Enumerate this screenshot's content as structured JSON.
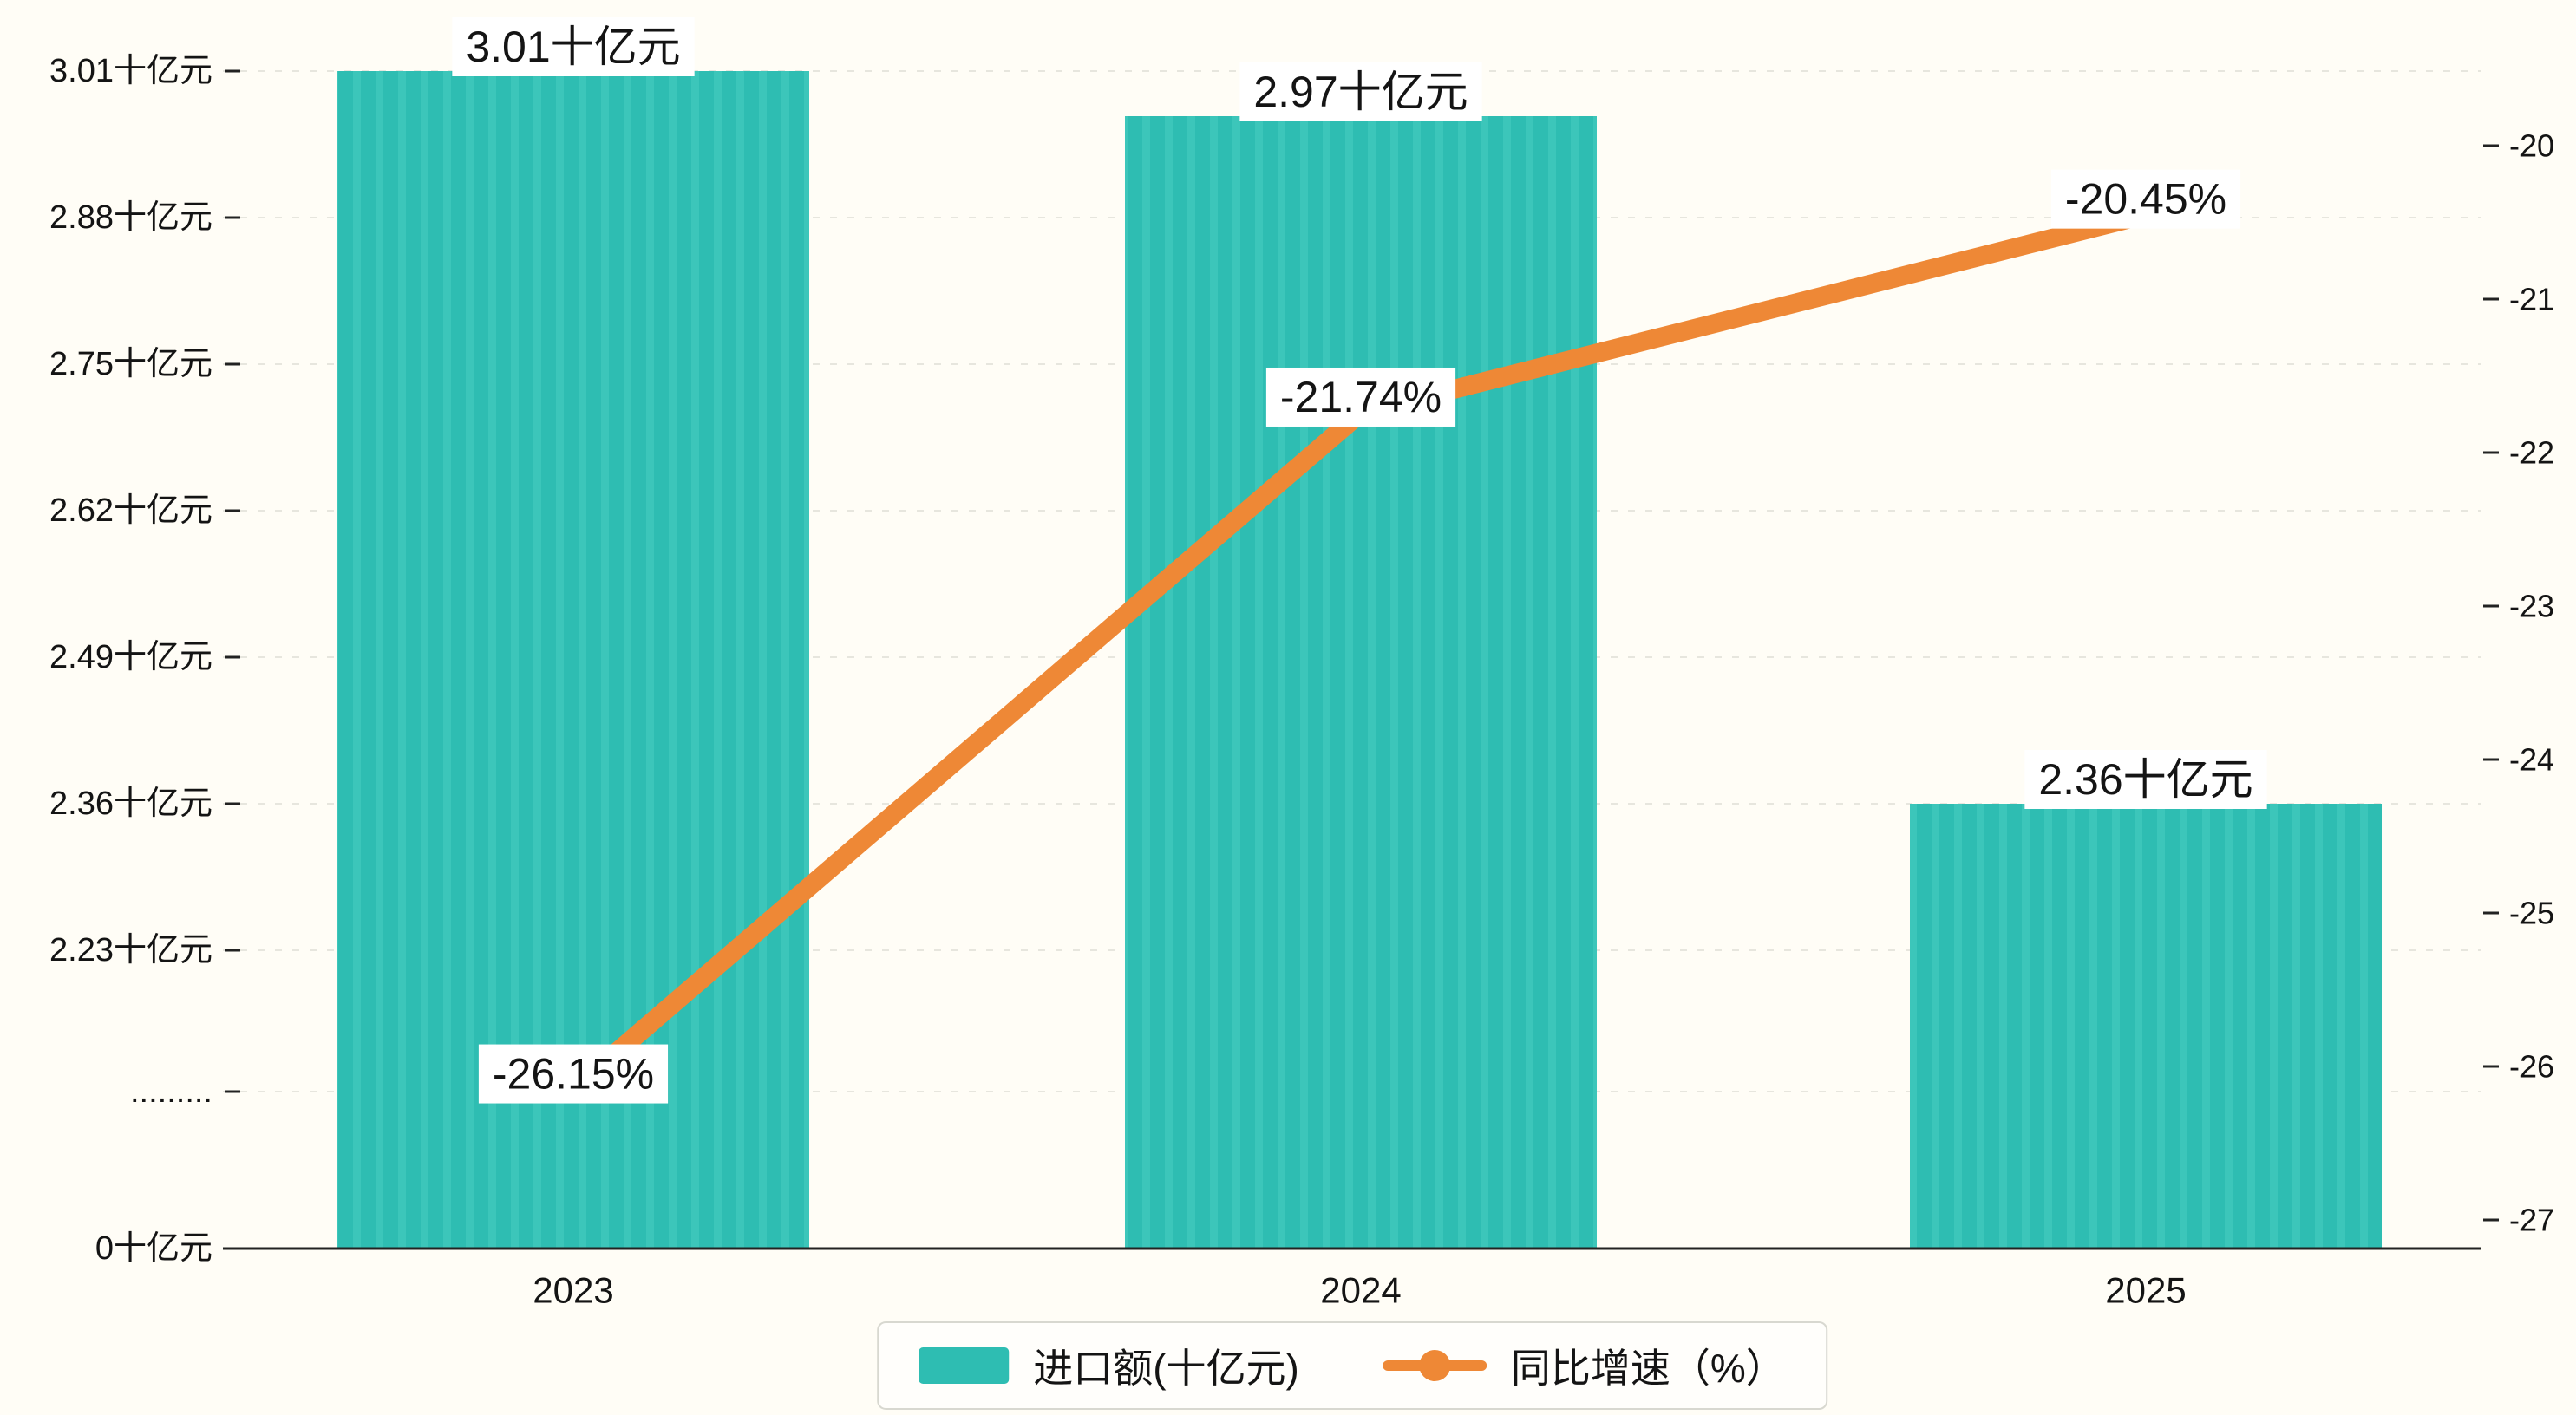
{
  "chart_data": {
    "type": "bar",
    "subtype": "bar-with-line-overlay-dual-axis",
    "categories": [
      "2023",
      "2024",
      "2025"
    ],
    "series": [
      {
        "name": "进口额(十亿元)",
        "type": "bar",
        "axis": "left",
        "values": [
          3.01,
          2.97,
          2.36
        ],
        "data_labels": [
          "3.01十亿元",
          "2.97十亿元",
          "2.36十亿元"
        ]
      },
      {
        "name": "同比增速（%）",
        "type": "line",
        "axis": "right",
        "values": [
          -26.15,
          -21.74,
          -20.45
        ],
        "data_labels": [
          "-26.15%",
          "-21.74%",
          "-20.45%"
        ]
      }
    ],
    "left_axis": {
      "broken_axis": true,
      "ticks": [
        {
          "label": "3.01十亿元",
          "value": 3.01
        },
        {
          "label": "2.88十亿元",
          "value": 2.88
        },
        {
          "label": "2.75十亿元",
          "value": 2.75
        },
        {
          "label": "2.62十亿元",
          "value": 2.62
        },
        {
          "label": "2.49十亿元",
          "value": 2.49
        },
        {
          "label": "2.36十亿元",
          "value": 2.36
        },
        {
          "label": "2.23十亿元",
          "value": 2.23
        },
        {
          "label": ".........",
          "value": null
        },
        {
          "label": "0十亿元",
          "value": 0
        }
      ]
    },
    "right_axis": {
      "ticks": [
        {
          "label": "-20",
          "value": -20
        },
        {
          "label": "-21",
          "value": -21
        },
        {
          "label": "-22",
          "value": -22
        },
        {
          "label": "-23",
          "value": -23
        },
        {
          "label": "-24",
          "value": -24
        },
        {
          "label": "-25",
          "value": -25
        },
        {
          "label": "-26",
          "value": -26
        },
        {
          "label": "-27",
          "value": -27
        }
      ]
    },
    "legend": [
      {
        "label": "进口额(十亿元)",
        "marker": "rect"
      },
      {
        "label": "同比增速（%）",
        "marker": "line-dot"
      }
    ],
    "grid": "dashed-horizontal",
    "legend_position": "bottom-center"
  },
  "colors": {
    "bar": "#2ebdb2",
    "bar_stripe": "#3cc6ba",
    "line": "#ee8836",
    "background": "#fffdf6",
    "grid": "#e7e6de",
    "axis": "#222222",
    "text": "#141414",
    "label_box": "#ffffff",
    "legend_border": "#d8d8d0"
  }
}
